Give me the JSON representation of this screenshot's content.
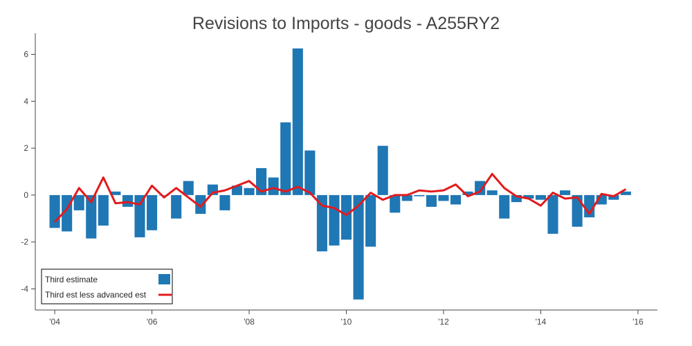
{
  "chart_data": {
    "type": "bar",
    "title": "Revisions to Imports - goods - A255RY2",
    "xlabel": "",
    "ylabel": "",
    "x_range": [
      2003.6,
      2016.4
    ],
    "ylim": [
      -4.9,
      6.9
    ],
    "x_tick_values": [
      2004,
      2006,
      2008,
      2010,
      2012,
      2014,
      2016
    ],
    "x_tick_labels": [
      "'04",
      "'06",
      "'08",
      "'10",
      "'12",
      "'14",
      "'16"
    ],
    "y_ticks": [
      -4,
      -2,
      0,
      2,
      4,
      6
    ],
    "grid": false,
    "legend": {
      "position": "bottom-left"
    },
    "quarters": [
      "2004Q1",
      "2004Q2",
      "2004Q3",
      "2004Q4",
      "2005Q1",
      "2005Q2",
      "2005Q3",
      "2005Q4",
      "2006Q1",
      "2006Q2",
      "2006Q3",
      "2006Q4",
      "2007Q1",
      "2007Q2",
      "2007Q3",
      "2007Q4",
      "2008Q1",
      "2008Q2",
      "2008Q3",
      "2008Q4",
      "2009Q1",
      "2009Q2",
      "2009Q3",
      "2009Q4",
      "2010Q1",
      "2010Q2",
      "2010Q3",
      "2010Q4",
      "2011Q1",
      "2011Q2",
      "2011Q3",
      "2011Q4",
      "2012Q1",
      "2012Q2",
      "2012Q3",
      "2012Q4",
      "2013Q1",
      "2013Q2",
      "2013Q3",
      "2013Q4",
      "2014Q1",
      "2014Q2",
      "2014Q3",
      "2014Q4",
      "2015Q1",
      "2015Q2",
      "2015Q3",
      "2015Q4"
    ],
    "series": [
      {
        "name": "Third estimate",
        "kind": "bar",
        "color": "#1f77b4",
        "values": [
          -1.4,
          -1.55,
          -0.65,
          -1.85,
          -1.3,
          0.15,
          -0.5,
          -1.8,
          -1.5,
          0.0,
          -1.0,
          0.6,
          -0.8,
          0.45,
          -0.65,
          0.4,
          0.3,
          1.15,
          0.75,
          3.1,
          6.25,
          1.9,
          -2.4,
          -2.15,
          -1.9,
          -4.45,
          -2.2,
          2.1,
          -0.75,
          -0.25,
          -0.05,
          -0.5,
          -0.25,
          -0.4,
          0.15,
          0.6,
          0.2,
          -1.0,
          -0.3,
          -0.15,
          -0.2,
          -1.65,
          0.2,
          -1.35,
          -0.95,
          -0.4,
          -0.2,
          0.15
        ]
      },
      {
        "name": "Third est less advanced est",
        "kind": "line",
        "color": "#e31a1c",
        "values": [
          -1.15,
          -0.6,
          0.3,
          -0.3,
          0.75,
          -0.35,
          -0.3,
          -0.4,
          0.4,
          -0.1,
          0.3,
          -0.1,
          -0.5,
          0.1,
          0.2,
          0.4,
          0.6,
          0.15,
          0.3,
          0.15,
          0.35,
          0.1,
          -0.45,
          -0.55,
          -0.85,
          -0.45,
          0.1,
          -0.2,
          0.0,
          0.0,
          0.2,
          0.15,
          0.2,
          0.45,
          -0.05,
          0.15,
          0.9,
          0.3,
          -0.05,
          -0.15,
          -0.45,
          0.1,
          -0.15,
          -0.1,
          -0.8,
          0.05,
          -0.05,
          0.25
        ]
      }
    ]
  }
}
